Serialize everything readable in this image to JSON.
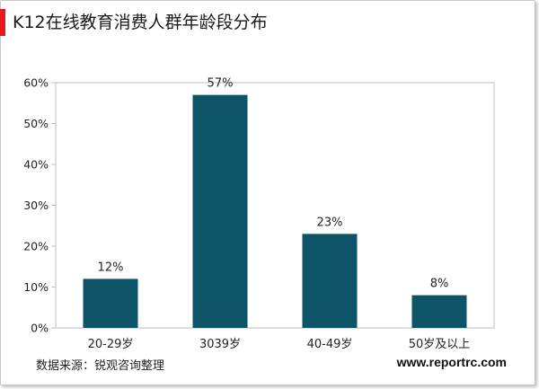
{
  "title": "K12在线教育消费人群年龄段分布",
  "colors": {
    "bar": "#0d5469",
    "accent": "#e8191c",
    "axis": "#bfbfbf",
    "text": "#222222"
  },
  "chart_data": {
    "type": "bar",
    "categories": [
      "20-29岁",
      "3039岁",
      "40-49岁",
      "50岁及以上"
    ],
    "values": [
      12,
      57,
      23,
      8
    ],
    "data_labels": [
      "12%",
      "57%",
      "23%",
      "8%"
    ],
    "yticks": [
      "0%",
      "10%",
      "20%",
      "30%",
      "40%",
      "50%",
      "60%"
    ],
    "ylim": [
      0,
      60
    ],
    "grid": false,
    "legend": "none"
  },
  "footer": {
    "source": "数据来源：锐观咨询整理",
    "website": "www.reportrc.com"
  }
}
